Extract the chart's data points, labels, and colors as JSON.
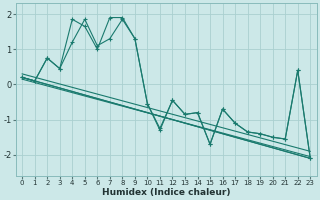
{
  "xlabel": "Humidex (Indice chaleur)",
  "bg_color": "#cce8e8",
  "grid_color": "#aad0d0",
  "line_color": "#1a7a6e",
  "xlim": [
    -0.5,
    23.5
  ],
  "ylim": [
    -2.6,
    2.3
  ],
  "yticks": [
    -2,
    -1,
    0,
    1,
    2
  ],
  "xticks": [
    0,
    1,
    2,
    3,
    4,
    5,
    6,
    7,
    8,
    9,
    10,
    11,
    12,
    13,
    14,
    15,
    16,
    17,
    18,
    19,
    20,
    21,
    22,
    23
  ],
  "zigzag1": [
    0.2,
    0.1,
    0.75,
    0.45,
    1.2,
    1.85,
    1.1,
    1.3,
    1.85,
    1.3,
    -0.55,
    -1.25,
    -0.45,
    -0.85,
    -0.8,
    -1.7,
    -0.7,
    -1.1,
    -1.35,
    -1.4,
    -1.5,
    -1.55,
    0.4,
    -2.1
  ],
  "zigzag2": [
    0.2,
    0.1,
    0.75,
    0.45,
    1.85,
    1.65,
    1.0,
    1.9,
    1.9,
    1.3,
    -0.55,
    -1.3,
    -0.45,
    -0.85,
    -0.8,
    -1.7,
    -0.7,
    -1.1,
    -1.35,
    -1.4,
    -1.5,
    -1.55,
    0.4,
    -2.1
  ],
  "trend_lines": [
    {
      "x0": 0,
      "y0": 0.2,
      "x1": 23,
      "y1": -2.1
    },
    {
      "x0": 0,
      "y0": 0.2,
      "x1": 23,
      "y1": -2.1
    },
    {
      "x0": 0,
      "y0": 0.3,
      "x1": 23,
      "y1": -1.9
    },
    {
      "x0": 0,
      "y0": 0.15,
      "x1": 23,
      "y1": -2.05
    }
  ]
}
